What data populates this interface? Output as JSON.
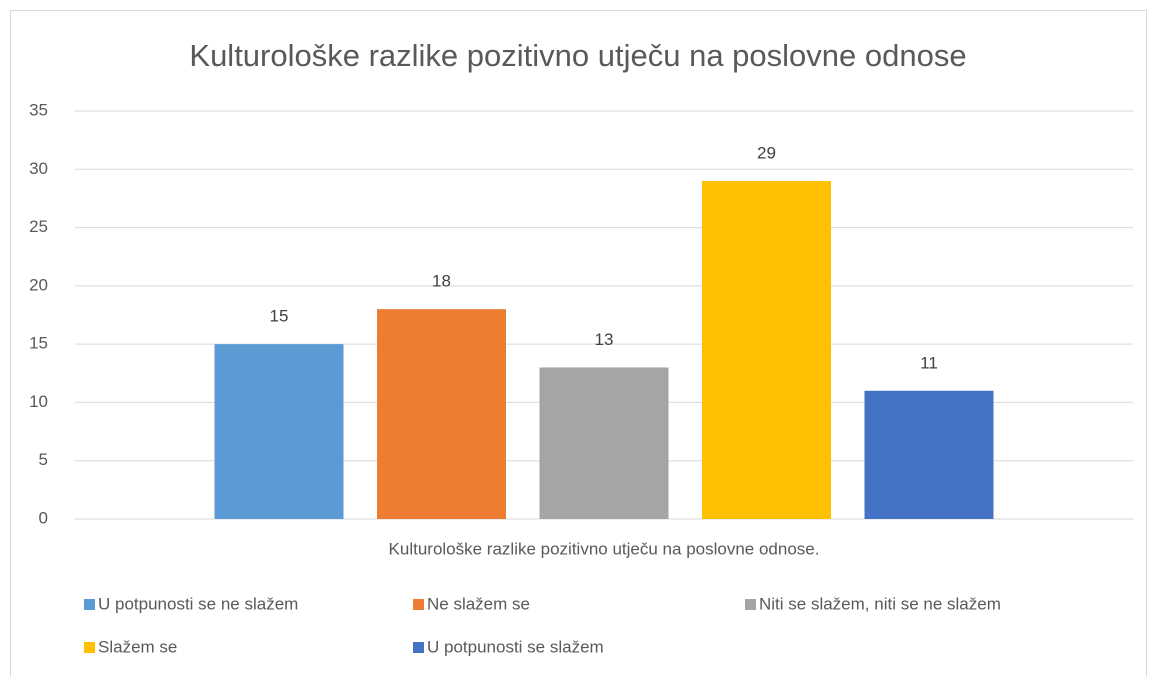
{
  "chart_data": {
    "type": "bar",
    "title": "Kulturološke razlike pozitivno utječu na poslovne odnose",
    "categories": [
      "Kulturološke razlike pozitivno utječu na poslovne odnose."
    ],
    "series": [
      {
        "name": "U potpunosti se ne slažem",
        "color": "#5b9bd5",
        "values": [
          15
        ]
      },
      {
        "name": "Ne slažem se",
        "color": "#ed7d31",
        "values": [
          18
        ]
      },
      {
        "name": "Niti se slažem, niti se ne slažem",
        "color": "#a5a5a5",
        "values": [
          13
        ]
      },
      {
        "name": "Slažem se",
        "color": "#ffc000",
        "values": [
          29
        ]
      },
      {
        "name": "U potpunosti se slažem",
        "color": "#4472c4",
        "values": [
          11
        ]
      }
    ],
    "ylim": [
      0,
      35
    ],
    "yticks": [
      0,
      5,
      10,
      15,
      20,
      25,
      30,
      35
    ],
    "grid": true,
    "legend": "bottom"
  }
}
